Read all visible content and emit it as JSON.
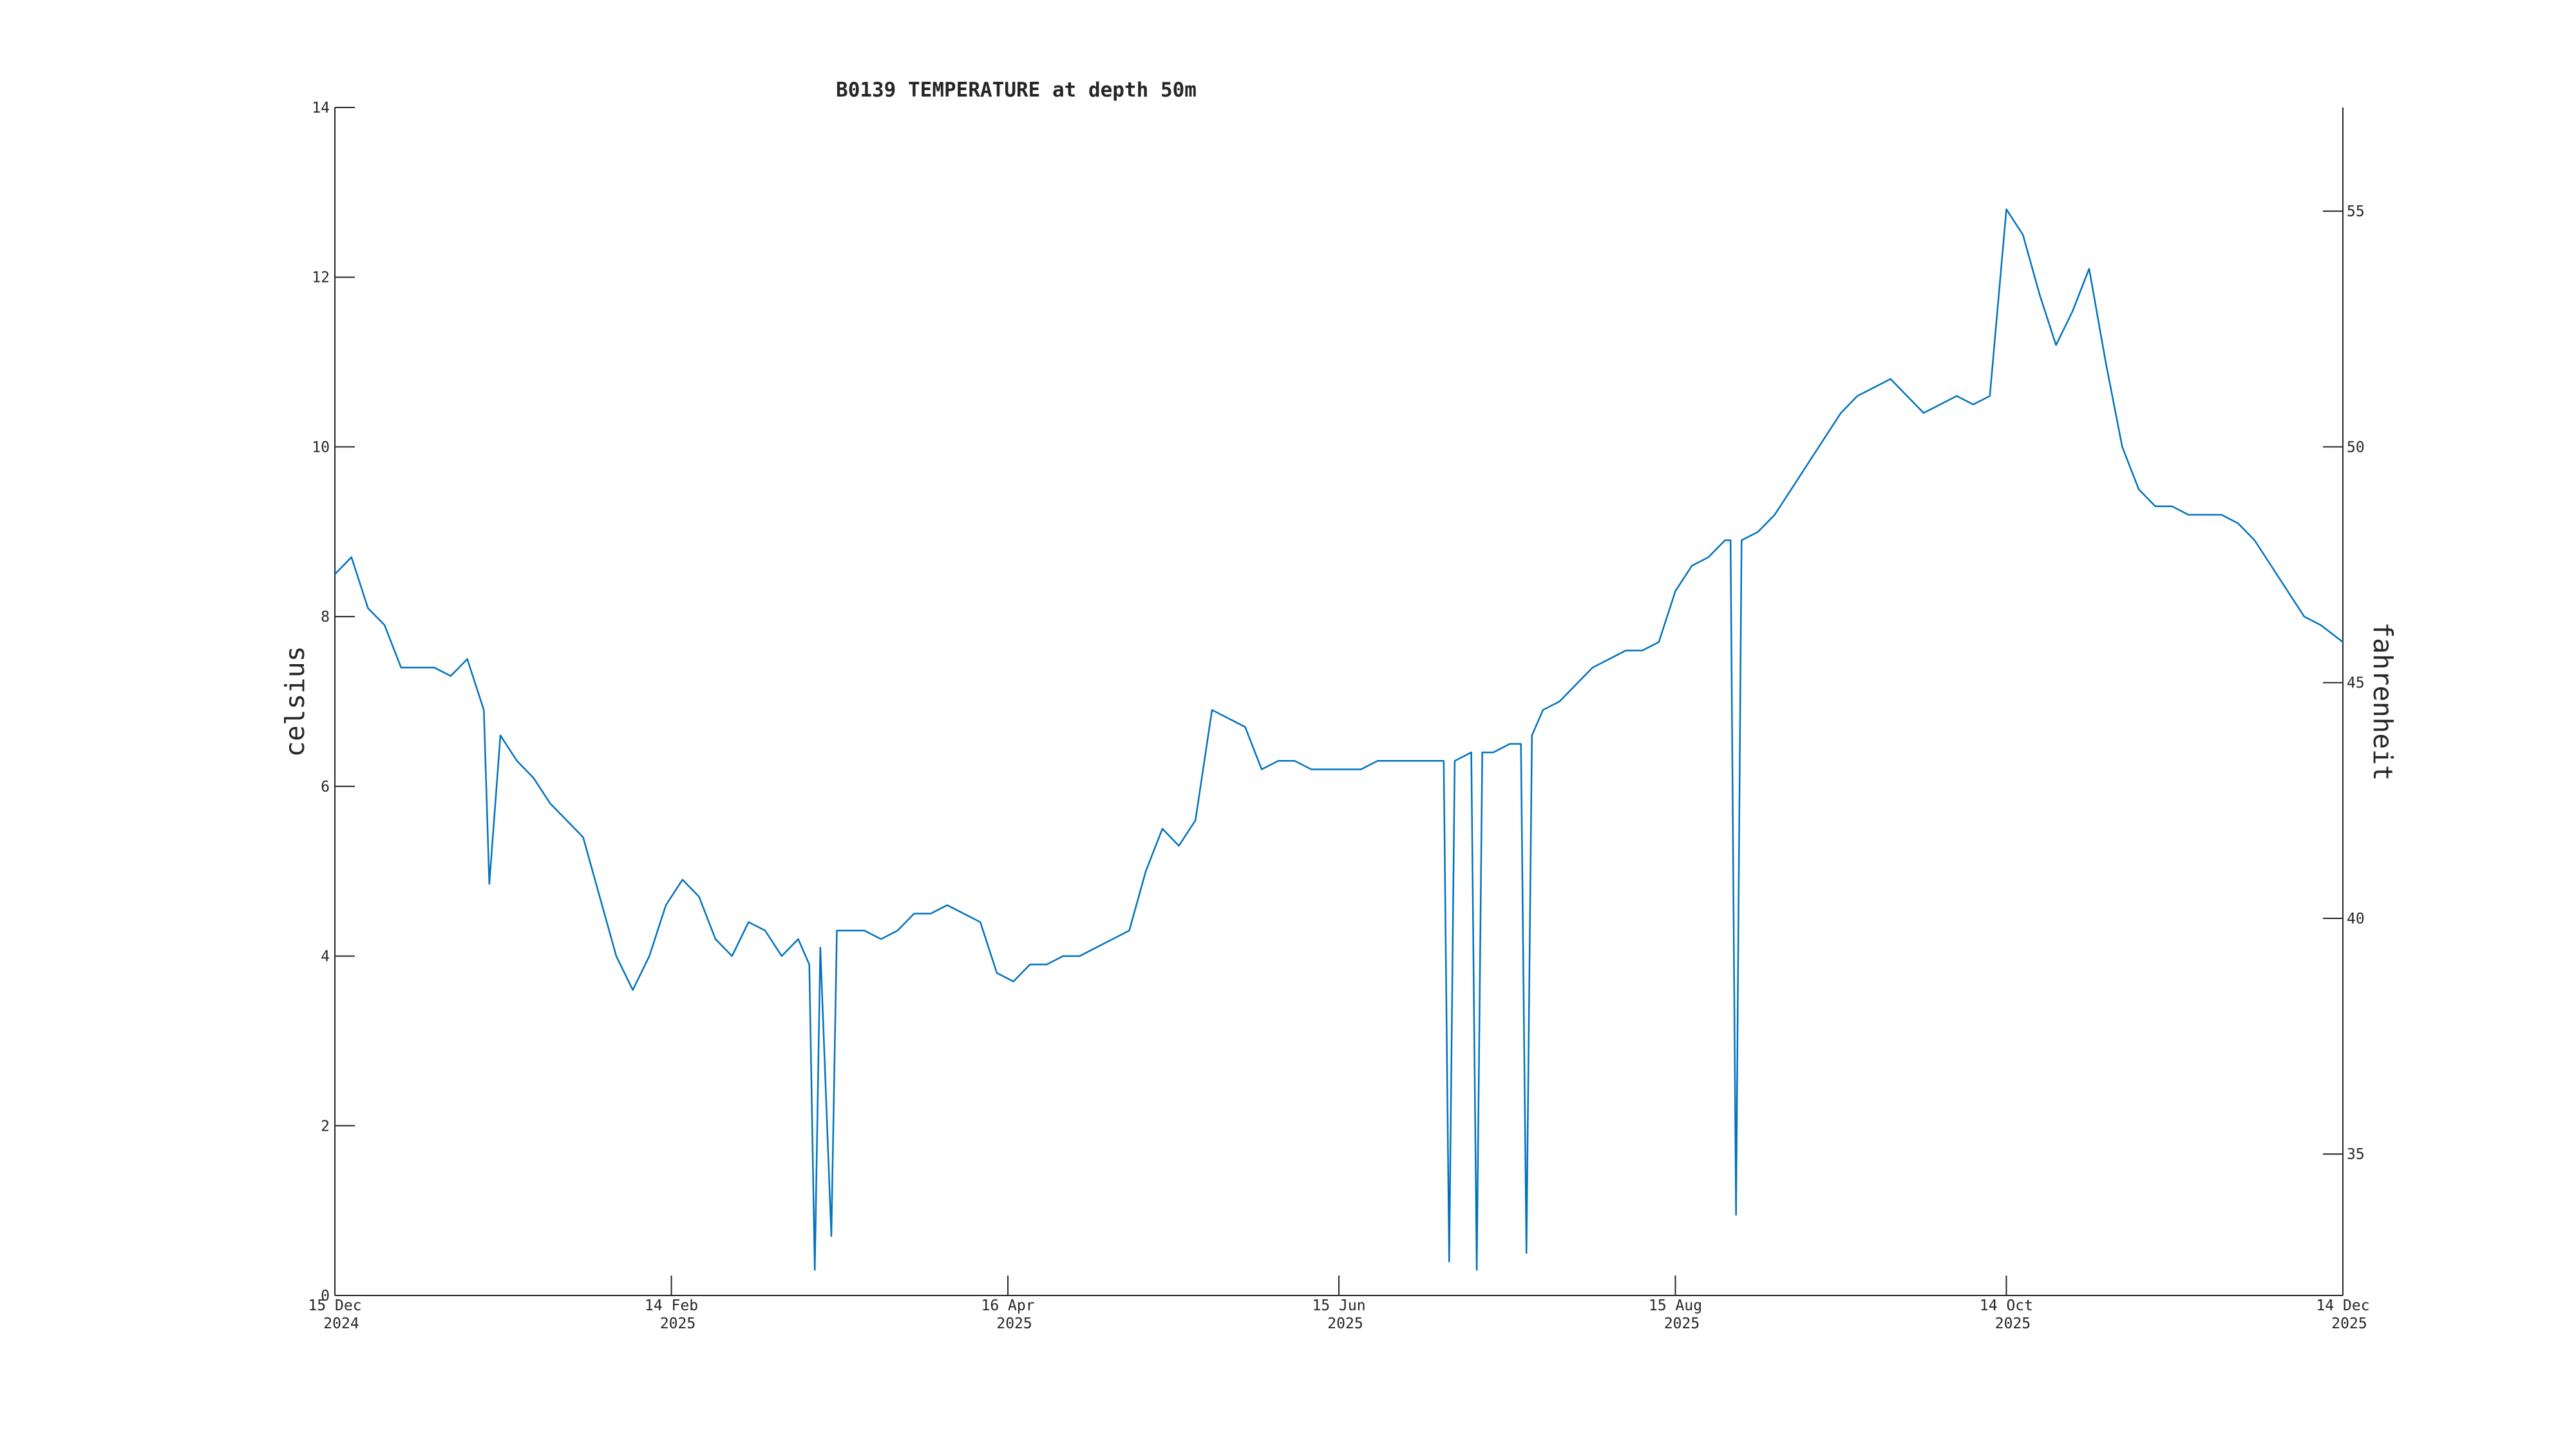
{
  "chart_data": {
    "type": "line",
    "title": "B0139 TEMPERATURE at depth 50m",
    "ylabel": "celsius",
    "y2label": "fahrenheit",
    "color": "#0072bd",
    "xlim": [
      "2024-12-15",
      "2025-12-14"
    ],
    "xticks": [
      {
        "value": "2024-12-15",
        "label": [
          "15 Dec",
          "2024"
        ]
      },
      {
        "value": "2025-02-14",
        "label": [
          "14 Feb",
          "2025"
        ]
      },
      {
        "value": "2025-04-16",
        "label": [
          "16 Apr",
          "2025"
        ]
      },
      {
        "value": "2025-06-15",
        "label": [
          "15 Jun",
          "2025"
        ]
      },
      {
        "value": "2025-08-15",
        "label": [
          "15 Aug",
          "2025"
        ]
      },
      {
        "value": "2025-10-14",
        "label": [
          "14 Oct",
          "2025"
        ]
      },
      {
        "value": "2025-12-14",
        "label": [
          "14 Dec",
          "2025"
        ]
      }
    ],
    "ylim": [
      0,
      14
    ],
    "yticks": [
      0,
      2,
      4,
      6,
      8,
      10,
      12,
      14
    ],
    "y2lim": [
      32,
      57.2
    ],
    "y2ticks": [
      35,
      40,
      45,
      50,
      55
    ],
    "x": [
      "2024-12-15",
      "2024-12-18",
      "2024-12-21",
      "2024-12-24",
      "2024-12-27",
      "2024-12-30",
      "2025-01-02",
      "2025-01-05",
      "2025-01-08",
      "2025-01-11",
      "2025-01-12",
      "2025-01-14",
      "2025-01-17",
      "2025-01-20",
      "2025-01-23",
      "2025-01-26",
      "2025-01-29",
      "2025-02-01",
      "2025-02-04",
      "2025-02-07",
      "2025-02-10",
      "2025-02-13",
      "2025-02-16",
      "2025-02-19",
      "2025-02-22",
      "2025-02-25",
      "2025-02-28",
      "2025-03-03",
      "2025-03-06",
      "2025-03-09",
      "2025-03-11",
      "2025-03-12",
      "2025-03-13",
      "2025-03-15",
      "2025-03-16",
      "2025-03-18",
      "2025-03-21",
      "2025-03-24",
      "2025-03-27",
      "2025-03-30",
      "2025-04-02",
      "2025-04-05",
      "2025-04-08",
      "2025-04-11",
      "2025-04-14",
      "2025-04-17",
      "2025-04-20",
      "2025-04-23",
      "2025-04-26",
      "2025-04-29",
      "2025-05-02",
      "2025-05-05",
      "2025-05-08",
      "2025-05-11",
      "2025-05-14",
      "2025-05-17",
      "2025-05-20",
      "2025-05-23",
      "2025-05-26",
      "2025-05-29",
      "2025-06-01",
      "2025-06-04",
      "2025-06-07",
      "2025-06-10",
      "2025-06-13",
      "2025-06-16",
      "2025-06-19",
      "2025-06-22",
      "2025-06-25",
      "2025-06-28",
      "2025-07-01",
      "2025-07-04",
      "2025-07-05",
      "2025-07-06",
      "2025-07-09",
      "2025-07-10",
      "2025-07-11",
      "2025-07-13",
      "2025-07-16",
      "2025-07-18",
      "2025-07-19",
      "2025-07-20",
      "2025-07-22",
      "2025-07-25",
      "2025-07-28",
      "2025-07-31",
      "2025-08-03",
      "2025-08-06",
      "2025-08-09",
      "2025-08-12",
      "2025-08-15",
      "2025-08-18",
      "2025-08-21",
      "2025-08-24",
      "2025-08-25",
      "2025-08-26",
      "2025-08-27",
      "2025-08-30",
      "2025-09-02",
      "2025-09-05",
      "2025-09-08",
      "2025-09-11",
      "2025-09-14",
      "2025-09-17",
      "2025-09-20",
      "2025-09-23",
      "2025-09-26",
      "2025-09-29",
      "2025-10-02",
      "2025-10-05",
      "2025-10-08",
      "2025-10-11",
      "2025-10-14",
      "2025-10-17",
      "2025-10-20",
      "2025-10-23",
      "2025-10-26",
      "2025-10-29",
      "2025-11-01",
      "2025-11-04",
      "2025-11-07",
      "2025-11-10",
      "2025-11-13",
      "2025-11-16",
      "2025-11-19",
      "2025-11-22",
      "2025-11-25",
      "2025-11-28",
      "2025-12-01",
      "2025-12-04",
      "2025-12-07",
      "2025-12-10",
      "2025-12-14"
    ],
    "values": [
      8.5,
      8.7,
      8.1,
      7.9,
      7.4,
      7.4,
      7.4,
      7.3,
      7.5,
      6.9,
      4.85,
      6.6,
      6.3,
      6.1,
      5.8,
      5.6,
      5.4,
      4.7,
      4.0,
      3.6,
      4.0,
      4.6,
      4.9,
      4.7,
      4.2,
      4.0,
      4.4,
      4.3,
      4.0,
      4.2,
      3.9,
      0.3,
      4.1,
      0.7,
      4.3,
      4.3,
      4.3,
      4.2,
      4.3,
      4.5,
      4.5,
      4.6,
      4.5,
      4.4,
      3.8,
      3.7,
      3.9,
      3.9,
      4.0,
      4.0,
      4.1,
      4.2,
      4.3,
      5.0,
      5.5,
      5.3,
      5.6,
      6.9,
      6.8,
      6.7,
      6.2,
      6.3,
      6.3,
      6.2,
      6.2,
      6.2,
      6.2,
      6.3,
      6.3,
      6.3,
      6.3,
      6.3,
      0.4,
      6.3,
      6.4,
      0.3,
      6.4,
      6.4,
      6.5,
      6.5,
      0.5,
      6.6,
      6.9,
      7.0,
      7.2,
      7.4,
      7.5,
      7.6,
      7.6,
      7.7,
      8.3,
      8.6,
      8.7,
      8.9,
      8.9,
      0.95,
      8.9,
      9.0,
      9.2,
      9.5,
      9.8,
      10.1,
      10.4,
      10.6,
      10.7,
      10.8,
      10.6,
      10.4,
      10.5,
      10.6,
      10.5,
      10.6,
      12.8,
      12.5,
      11.8,
      11.2,
      11.6,
      12.1,
      11.0,
      10.0,
      9.5,
      9.3,
      9.3,
      9.2,
      9.2,
      9.2,
      9.1,
      8.9,
      8.6,
      8.3,
      8.0,
      7.9,
      7.7
    ]
  }
}
